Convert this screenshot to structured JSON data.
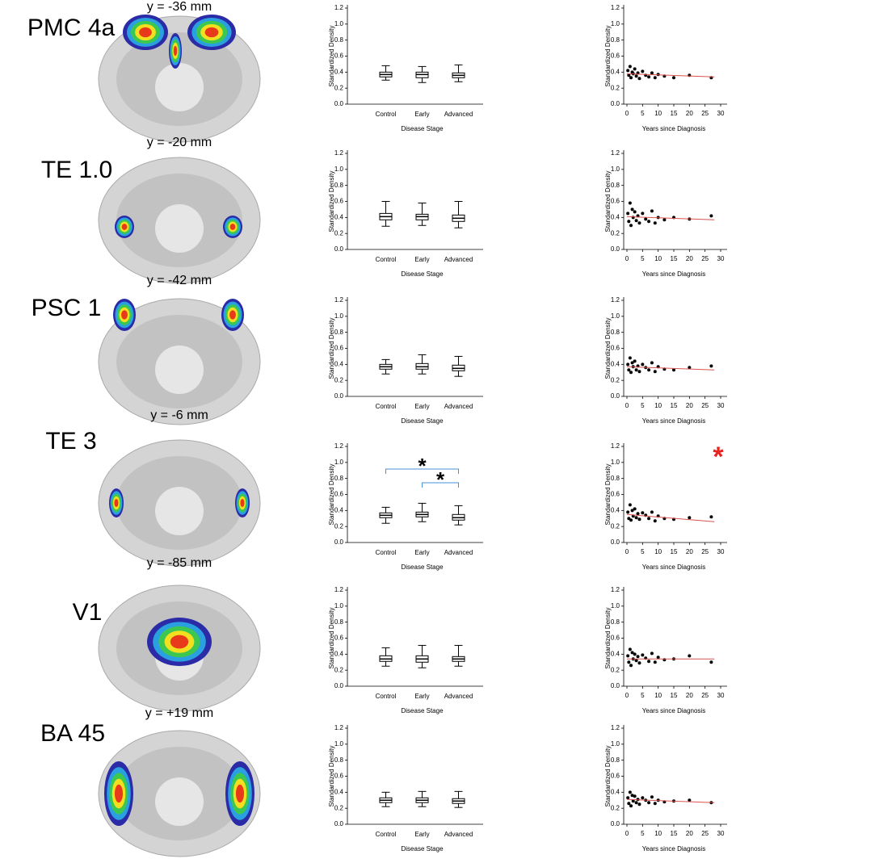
{
  "panels": [
    {
      "region": "PMC 4a",
      "slice": "y = -36 mm"
    },
    {
      "region": "TE 1.0",
      "slice": "y = -20 mm"
    },
    {
      "region": "PSC 1",
      "slice": "y = -42 mm"
    },
    {
      "region": "TE 3",
      "slice": "y = -6 mm"
    },
    {
      "region": "V1",
      "slice": "y = -85 mm"
    },
    {
      "region": "BA 45",
      "slice": "y = +19 mm"
    }
  ],
  "chart_data": [
    {
      "type": "box",
      "ylabel": "Standardized Density",
      "xlabel": "Disease Stage",
      "categories": [
        "Control",
        "Early",
        "Advanced"
      ],
      "min": [
        0.3,
        0.27,
        0.28
      ],
      "q1": [
        0.34,
        0.33,
        0.33
      ],
      "median": [
        0.37,
        0.37,
        0.36
      ],
      "q3": [
        0.4,
        0.4,
        0.39
      ],
      "max": [
        0.48,
        0.47,
        0.49
      ],
      "ylim": [
        0,
        1.2
      ],
      "yticks": [
        {
          "value": 0,
          "label": "0.0"
        },
        0.2,
        0.4,
        0.6,
        0.8,
        {
          "value": 1,
          "label": "1.0"
        },
        1.2
      ]
    },
    {
      "type": "scatter",
      "ylabel": "Standardized Density",
      "xlabel": "Years since Diagnosis",
      "x": [
        0.3,
        0.6,
        1,
        1.3,
        1.7,
        2,
        2.5,
        3,
        3.5,
        4,
        5,
        6,
        7,
        8,
        9,
        10,
        12,
        15,
        20,
        27
      ],
      "y": [
        0.42,
        0.36,
        0.47,
        0.33,
        0.4,
        0.38,
        0.44,
        0.35,
        0.39,
        0.32,
        0.41,
        0.36,
        0.34,
        0.39,
        0.33,
        0.37,
        0.35,
        0.33,
        0.36,
        0.33
      ],
      "trend": {
        "color": "#d9534f",
        "x": [
          0,
          28
        ],
        "y": [
          0.38,
          0.34
        ]
      },
      "xlim": [
        0,
        30
      ],
      "xticks": [
        0,
        5,
        10,
        15,
        20,
        25,
        30
      ],
      "ylim": [
        0,
        1.2
      ],
      "yticks": [
        {
          "value": 0,
          "label": "0.0"
        },
        0.2,
        0.4,
        0.6,
        0.8,
        {
          "value": 1,
          "label": "1.0"
        },
        1.2
      ]
    },
    {
      "type": "box",
      "ylabel": "Standardized Density",
      "xlabel": "Disease Stage",
      "categories": [
        "Control",
        "Early",
        "Advanced"
      ],
      "min": [
        0.29,
        0.3,
        0.27
      ],
      "q1": [
        0.37,
        0.37,
        0.35
      ],
      "median": [
        0.41,
        0.41,
        0.39
      ],
      "q3": [
        0.45,
        0.44,
        0.43
      ],
      "max": [
        0.6,
        0.58,
        0.6
      ],
      "ylim": [
        0,
        1.2
      ],
      "yticks": [
        {
          "value": 0,
          "label": "0.0"
        },
        0.2,
        0.4,
        0.6,
        0.8,
        {
          "value": 1,
          "label": "1.0"
        },
        1.2
      ]
    },
    {
      "type": "scatter",
      "ylabel": "Standardized Density",
      "xlabel": "Years since Diagnosis",
      "x": [
        0.3,
        0.6,
        1,
        1.3,
        1.7,
        2,
        2.5,
        3,
        3.5,
        4,
        5,
        6,
        7,
        8,
        9,
        10,
        12,
        15,
        20,
        27
      ],
      "y": [
        0.45,
        0.35,
        0.58,
        0.3,
        0.5,
        0.4,
        0.47,
        0.36,
        0.42,
        0.33,
        0.45,
        0.38,
        0.35,
        0.48,
        0.33,
        0.4,
        0.37,
        0.4,
        0.38,
        0.42
      ],
      "trend": {
        "color": "#d9534f",
        "x": [
          0,
          28
        ],
        "y": [
          0.41,
          0.37
        ]
      },
      "xlim": [
        0,
        30
      ],
      "xticks": [
        0,
        5,
        10,
        15,
        20,
        25,
        30
      ],
      "ylim": [
        0,
        1.2
      ],
      "yticks": [
        {
          "value": 0,
          "label": "0.0"
        },
        0.2,
        0.4,
        0.6,
        0.8,
        {
          "value": 1,
          "label": "1.0"
        },
        1.2
      ]
    },
    {
      "type": "box",
      "ylabel": "Standardized Density",
      "xlabel": "Disease Stage",
      "categories": [
        "Control",
        "Early",
        "Advanced"
      ],
      "min": [
        0.28,
        0.28,
        0.25
      ],
      "q1": [
        0.34,
        0.34,
        0.32
      ],
      "median": [
        0.37,
        0.37,
        0.35
      ],
      "q3": [
        0.4,
        0.41,
        0.39
      ],
      "max": [
        0.46,
        0.52,
        0.5
      ],
      "ylim": [
        0,
        1.2
      ],
      "yticks": [
        {
          "value": 0,
          "label": "0.0"
        },
        0.2,
        0.4,
        0.6,
        0.8,
        {
          "value": 1,
          "label": "1.0"
        },
        1.2
      ]
    },
    {
      "type": "scatter",
      "ylabel": "Standardized Density",
      "xlabel": "Years since Diagnosis",
      "x": [
        0.3,
        0.6,
        1,
        1.3,
        1.7,
        2,
        2.5,
        3,
        3.5,
        4,
        5,
        6,
        7,
        8,
        9,
        10,
        12,
        15,
        20,
        27
      ],
      "y": [
        0.4,
        0.33,
        0.48,
        0.3,
        0.42,
        0.37,
        0.44,
        0.33,
        0.38,
        0.31,
        0.4,
        0.36,
        0.33,
        0.42,
        0.31,
        0.37,
        0.34,
        0.33,
        0.36,
        0.38
      ],
      "trend": {
        "color": "#d9534f",
        "x": [
          0,
          28
        ],
        "y": [
          0.37,
          0.33
        ]
      },
      "xlim": [
        0,
        30
      ],
      "xticks": [
        0,
        5,
        10,
        15,
        20,
        25,
        30
      ],
      "ylim": [
        0,
        1.2
      ],
      "yticks": [
        {
          "value": 0,
          "label": "0.0"
        },
        0.2,
        0.4,
        0.6,
        0.8,
        {
          "value": 1,
          "label": "1.0"
        },
        1.2
      ]
    },
    {
      "type": "box",
      "ylabel": "Standardized Density",
      "xlabel": "Disease Stage",
      "categories": [
        "Control",
        "Early",
        "Advanced"
      ],
      "min": [
        0.24,
        0.26,
        0.22
      ],
      "q1": [
        0.31,
        0.32,
        0.28
      ],
      "median": [
        0.34,
        0.35,
        0.31
      ],
      "q3": [
        0.37,
        0.38,
        0.35
      ],
      "max": [
        0.44,
        0.49,
        0.46
      ],
      "ylim": [
        0,
        1.2
      ],
      "yticks": [
        {
          "value": 0,
          "label": "0.0"
        },
        0.2,
        0.4,
        0.6,
        0.8,
        {
          "value": 1,
          "label": "1.0"
        },
        1.2
      ],
      "significance": [
        {
          "pair": [
            0,
            2
          ],
          "label": "*"
        },
        {
          "pair": [
            1,
            2
          ],
          "label": "*"
        }
      ],
      "bracket_color": "#4a90d9"
    },
    {
      "type": "scatter",
      "ylabel": "Standardized Density",
      "xlabel": "Years since Diagnosis",
      "x": [
        0.3,
        0.6,
        1,
        1.3,
        1.7,
        2,
        2.5,
        3,
        3.5,
        4,
        5,
        6,
        7,
        8,
        9,
        10,
        12,
        15,
        20,
        27
      ],
      "y": [
        0.38,
        0.3,
        0.47,
        0.28,
        0.4,
        0.33,
        0.42,
        0.31,
        0.36,
        0.29,
        0.37,
        0.34,
        0.3,
        0.38,
        0.27,
        0.33,
        0.3,
        0.29,
        0.31,
        0.32
      ],
      "trend": {
        "color": "#d9534f",
        "x": [
          0,
          28
        ],
        "y": [
          0.35,
          0.26
        ]
      },
      "annotation": {
        "text": "*",
        "color": "#e8231f"
      },
      "xlim": [
        0,
        30
      ],
      "xticks": [
        0,
        5,
        10,
        15,
        20,
        25,
        30
      ],
      "ylim": [
        0,
        1.2
      ],
      "yticks": [
        {
          "value": 0,
          "label": "0.0"
        },
        0.2,
        0.4,
        0.6,
        0.8,
        {
          "value": 1,
          "label": "1.0"
        },
        1.2
      ]
    },
    {
      "type": "box",
      "ylabel": "Standardized Density",
      "xlabel": "Disease Stage",
      "categories": [
        "Control",
        "Early",
        "Advanced"
      ],
      "min": [
        0.25,
        0.23,
        0.25
      ],
      "q1": [
        0.31,
        0.3,
        0.31
      ],
      "median": [
        0.34,
        0.34,
        0.34
      ],
      "q3": [
        0.38,
        0.38,
        0.37
      ],
      "max": [
        0.48,
        0.51,
        0.51
      ],
      "ylim": [
        0,
        1.2
      ],
      "yticks": [
        {
          "value": 0,
          "label": "0.0"
        },
        0.2,
        0.4,
        0.6,
        0.8,
        {
          "value": 1,
          "label": "1.0"
        },
        1.2
      ]
    },
    {
      "type": "scatter",
      "ylabel": "Standardized Density",
      "xlabel": "Years since Diagnosis",
      "x": [
        0.3,
        0.6,
        1,
        1.3,
        1.7,
        2,
        2.5,
        3,
        3.5,
        4,
        5,
        6,
        7,
        8,
        9,
        10,
        12,
        15,
        20,
        27
      ],
      "y": [
        0.38,
        0.3,
        0.46,
        0.26,
        0.42,
        0.34,
        0.4,
        0.32,
        0.37,
        0.29,
        0.39,
        0.35,
        0.31,
        0.41,
        0.3,
        0.36,
        0.33,
        0.34,
        0.38,
        0.3
      ],
      "trend": {
        "color": "#d9534f",
        "x": [
          0,
          28
        ],
        "y": [
          0.34,
          0.34
        ]
      },
      "xlim": [
        0,
        30
      ],
      "xticks": [
        0,
        5,
        10,
        15,
        20,
        25,
        30
      ],
      "ylim": [
        0,
        1.2
      ],
      "yticks": [
        {
          "value": 0,
          "label": "0.0"
        },
        0.2,
        0.4,
        0.6,
        0.8,
        {
          "value": 1,
          "label": "1.0"
        },
        1.2
      ]
    },
    {
      "type": "box",
      "ylabel": "Standardized Density",
      "xlabel": "Disease Stage",
      "categories": [
        "Control",
        "Early",
        "Advanced"
      ],
      "min": [
        0.22,
        0.22,
        0.21
      ],
      "q1": [
        0.27,
        0.27,
        0.26
      ],
      "median": [
        0.3,
        0.3,
        0.29
      ],
      "q3": [
        0.33,
        0.33,
        0.32
      ],
      "max": [
        0.4,
        0.41,
        0.41
      ],
      "ylim": [
        0,
        1.2
      ],
      "yticks": [
        {
          "value": 0,
          "label": "0.0"
        },
        0.2,
        0.4,
        0.6,
        0.8,
        {
          "value": 1,
          "label": "1.0"
        },
        1.2
      ]
    },
    {
      "type": "scatter",
      "ylabel": "Standardized Density",
      "xlabel": "Years since Diagnosis",
      "x": [
        0.3,
        0.6,
        1,
        1.3,
        1.7,
        2,
        2.5,
        3,
        3.5,
        4,
        5,
        6,
        7,
        8,
        9,
        10,
        12,
        15,
        20,
        27
      ],
      "y": [
        0.33,
        0.26,
        0.4,
        0.23,
        0.36,
        0.29,
        0.35,
        0.27,
        0.31,
        0.25,
        0.33,
        0.3,
        0.27,
        0.34,
        0.26,
        0.3,
        0.28,
        0.29,
        0.3,
        0.27
      ],
      "trend": {
        "color": "#d9534f",
        "x": [
          0,
          28
        ],
        "y": [
          0.31,
          0.27
        ]
      },
      "xlim": [
        0,
        30
      ],
      "xticks": [
        0,
        5,
        10,
        15,
        20,
        25,
        30
      ],
      "ylim": [
        0,
        1.2
      ],
      "yticks": [
        {
          "value": 0,
          "label": "0.0"
        },
        0.2,
        0.4,
        0.6,
        0.8,
        {
          "value": 1,
          "label": "1.0"
        },
        1.2
      ]
    }
  ]
}
